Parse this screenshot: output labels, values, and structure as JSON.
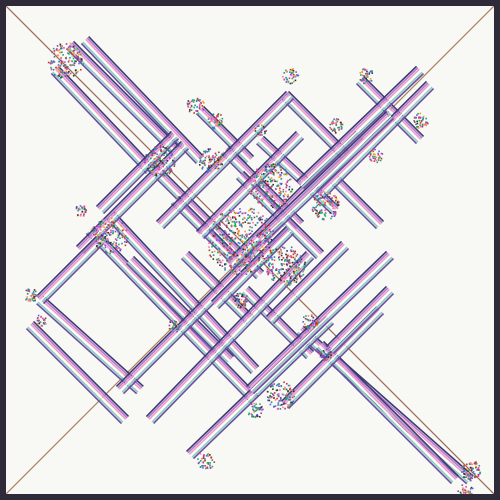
{
  "palette": {
    "frame": "#2f2a39",
    "background": "#f8f8f4",
    "diagonal_main": "#9a6a58",
    "diagonal_anti": "#b08060",
    "stripes": [
      "#3b3b6e",
      "#b678d4",
      "#f0a0c8",
      "#ffffff",
      "#8fd0c0",
      "#6a4fa0"
    ],
    "noise": [
      "#c0392b",
      "#27ae60",
      "#2980b9",
      "#8e44ad",
      "#f39c12",
      "#16a085",
      "#e84393",
      "#2d3436",
      "#6c5ce7",
      "#fd79a8"
    ]
  }
}
